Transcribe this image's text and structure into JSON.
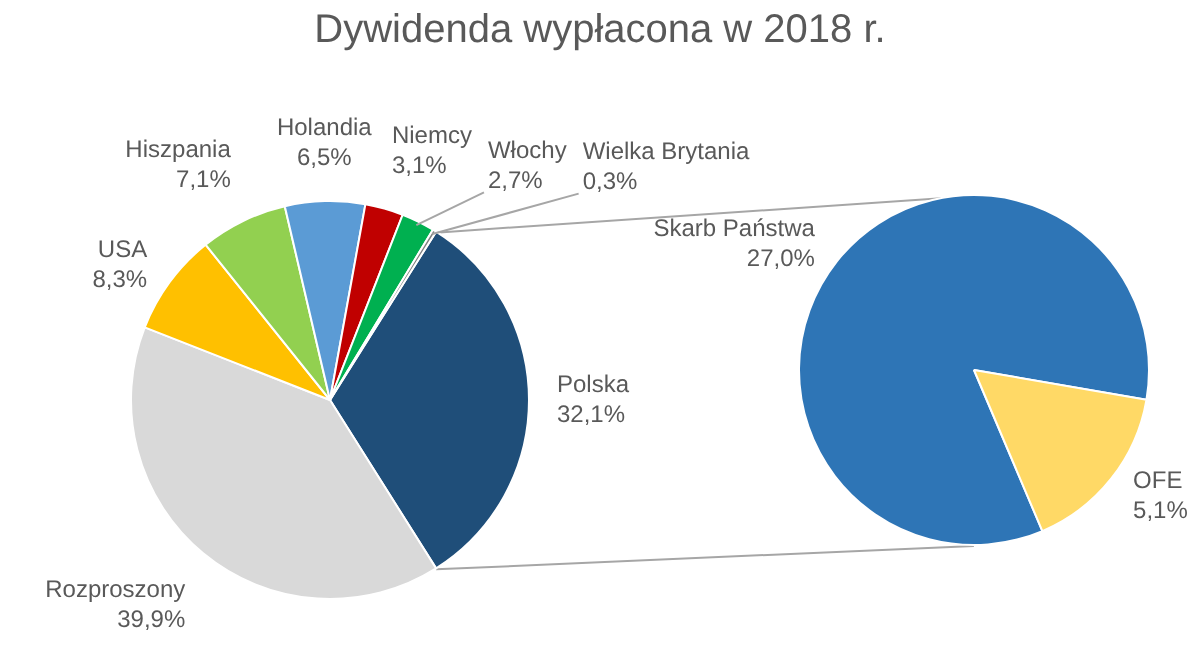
{
  "chart_data": [
    {
      "type": "pie",
      "title": "Dywidenda wypłacona w 2018 r.",
      "categories": [
        "Polska",
        "Rozproszony",
        "USA",
        "Hiszpania",
        "Holandia",
        "Niemcy",
        "Włochy",
        "Wielka Brytania"
      ],
      "values": [
        32.1,
        39.9,
        8.3,
        7.1,
        6.5,
        3.1,
        2.7,
        0.3
      ],
      "colors": [
        "#1f4e79",
        "#d9d9d9",
        "#ffc000",
        "#92d050",
        "#5b9bd5",
        "#c00000",
        "#00b050",
        "#7f7f7f"
      ],
      "value_labels": [
        "32,1%",
        "39,9%",
        "8,3%",
        "7,1%",
        "6,5%",
        "3,1%",
        "2,7%",
        "0,3%"
      ]
    },
    {
      "type": "pie",
      "categories": [
        "Skarb Państwa",
        "OFE"
      ],
      "values": [
        27.0,
        5.1
      ],
      "colors": [
        "#2e75b6",
        "#ffd966"
      ],
      "value_labels": [
        "27,0%",
        "5,1%"
      ]
    }
  ]
}
